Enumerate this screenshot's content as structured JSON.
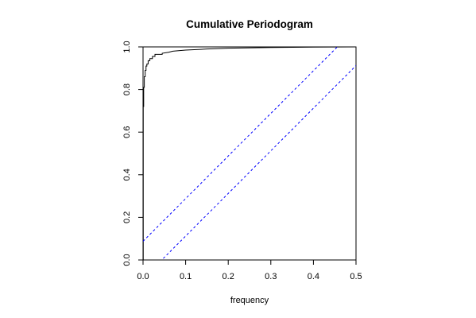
{
  "chart_data": {
    "type": "line",
    "title": "Cumulative Periodogram",
    "xlabel": "frequency",
    "ylabel": "",
    "xlim": [
      0,
      0.5
    ],
    "ylim": [
      0,
      1
    ],
    "x_ticks": [
      "0.0",
      "0.1",
      "0.2",
      "0.3",
      "0.4",
      "0.5"
    ],
    "y_ticks": [
      "0.0",
      "0.2",
      "0.4",
      "0.6",
      "0.8",
      "1.0"
    ],
    "grid": false,
    "legend": "none",
    "series": [
      {
        "style": "solid",
        "color": "#000000",
        "points": [
          [
            0.0,
            0.0
          ],
          [
            0.0005,
            0.0
          ],
          [
            0.0005,
            0.72
          ],
          [
            0.0015,
            0.72
          ],
          [
            0.0015,
            0.81
          ],
          [
            0.003,
            0.81
          ],
          [
            0.003,
            0.86
          ],
          [
            0.005,
            0.86
          ],
          [
            0.005,
            0.89
          ],
          [
            0.007,
            0.89
          ],
          [
            0.007,
            0.91
          ],
          [
            0.009,
            0.91
          ],
          [
            0.009,
            0.92
          ],
          [
            0.012,
            0.92
          ],
          [
            0.012,
            0.935
          ],
          [
            0.016,
            0.935
          ],
          [
            0.016,
            0.945
          ],
          [
            0.022,
            0.945
          ],
          [
            0.022,
            0.955
          ],
          [
            0.028,
            0.955
          ],
          [
            0.028,
            0.965
          ],
          [
            0.045,
            0.965
          ],
          [
            0.045,
            0.97
          ],
          [
            0.06,
            0.975
          ],
          [
            0.07,
            0.98
          ],
          [
            0.1,
            0.985
          ],
          [
            0.15,
            0.99
          ],
          [
            0.2,
            0.994
          ],
          [
            0.3,
            0.997
          ],
          [
            0.4,
            0.999
          ],
          [
            0.5,
            1.0
          ]
        ]
      },
      {
        "style": "dashed",
        "color": "#0000ff",
        "points": [
          [
            0.0,
            0.0878
          ],
          [
            0.5,
            1.0878
          ]
        ]
      },
      {
        "style": "dashed",
        "color": "#0000ff",
        "points": [
          [
            0.0,
            -0.0878
          ],
          [
            0.5,
            0.9122
          ]
        ]
      }
    ]
  }
}
